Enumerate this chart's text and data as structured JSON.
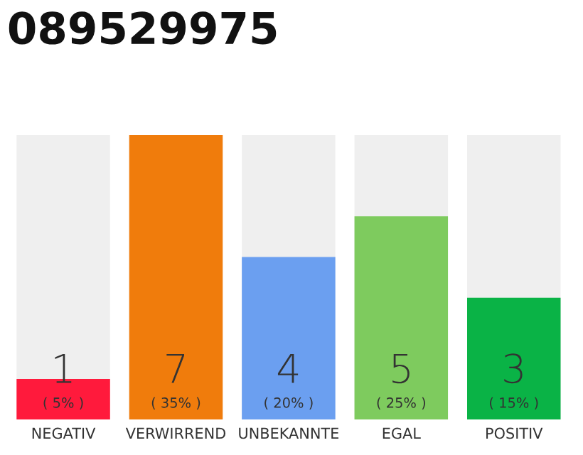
{
  "chart_data": {
    "type": "bar",
    "title": "089529975",
    "categories": [
      "NEGATIV",
      "VERWIRREND",
      "UNBEKANNTE",
      "EGAL",
      "POSITIV"
    ],
    "values": [
      1,
      7,
      4,
      5,
      3
    ],
    "colors": [
      "#ff1a3c",
      "#f07c0c",
      "#6b9ff0",
      "#7ecb5e",
      "#0ab346"
    ],
    "data_labels": true,
    "annotations": [
      {
        "text": "( 5% )",
        "x": "NEGATIV",
        "y": 0
      },
      {
        "text": "( 35% )",
        "x": "VERWIRREND",
        "y": 0
      },
      {
        "text": "( 20% )",
        "x": "UNBEKANNTE",
        "y": 0
      },
      {
        "text": "( 25% )",
        "x": "EGAL",
        "y": 0
      },
      {
        "text": "( 15% )",
        "x": "POSITIV",
        "y": 0
      }
    ],
    "grid": false
  }
}
